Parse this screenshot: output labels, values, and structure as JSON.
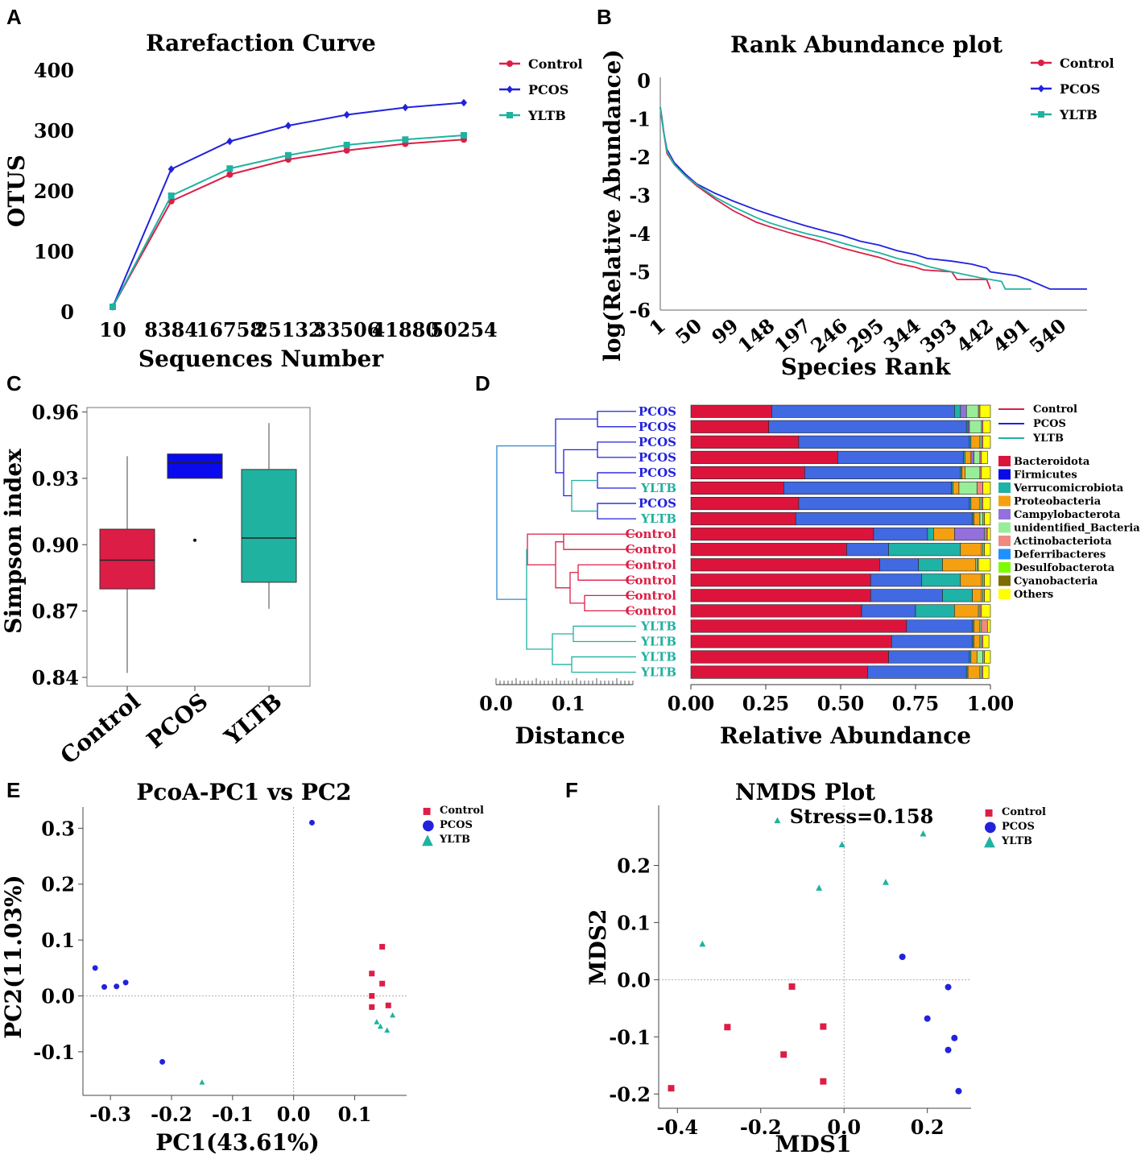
{
  "figure": {
    "panel_labels": [
      "A",
      "B",
      "C",
      "D",
      "E",
      "F"
    ],
    "group_colors": {
      "Control": "#dc1e46",
      "PCOS": "#2222dd",
      "YLTB": "#20b2a0"
    }
  },
  "chart_data": [
    {
      "id": "A",
      "type": "line",
      "title": "Rarefaction Curve",
      "xlabel": "Sequences Number",
      "ylabel": "OTUS",
      "categories": [
        "10",
        "8384",
        "16758",
        "25132",
        "33506",
        "41880",
        "50254"
      ],
      "yticks": [
        "0",
        "100",
        "200",
        "300",
        "400"
      ],
      "ylim": [
        0,
        400
      ],
      "series": [
        {
          "name": "Control",
          "color": "#dc1e46",
          "marker": "circle",
          "values": [
            8,
            183,
            227,
            252,
            267,
            278,
            285
          ]
        },
        {
          "name": "PCOS",
          "color": "#2222dd",
          "marker": "diamond",
          "values": [
            8,
            236,
            282,
            308,
            326,
            338,
            346
          ]
        },
        {
          "name": "YLTB",
          "color": "#20b2a0",
          "marker": "square",
          "values": [
            8,
            192,
            237,
            259,
            276,
            285,
            292
          ]
        }
      ]
    },
    {
      "id": "B",
      "type": "line",
      "title": "Rank Abundance plot",
      "xlabel": "Species Rank",
      "ylabel": "log(Relative Abundance)",
      "xticks": [
        "1",
        "50",
        "99",
        "148",
        "197",
        "246",
        "295",
        "344",
        "393",
        "442",
        "491",
        "540"
      ],
      "yticks": [
        "0",
        "-1",
        "-2",
        "-3",
        "-4",
        "-5",
        "-6"
      ],
      "xlim": [
        1,
        575
      ],
      "ylim": [
        -6,
        0
      ],
      "series": [
        {
          "name": "Control",
          "color": "#dc1e46",
          "x": [
            1,
            3,
            6,
            10,
            20,
            35,
            50,
            75,
            99,
            130,
            148,
            175,
            197,
            220,
            246,
            270,
            295,
            320,
            344,
            355,
            393,
            400,
            440,
            445
          ],
          "y": [
            -0.7,
            -1.0,
            -1.4,
            -1.9,
            -2.2,
            -2.5,
            -2.75,
            -3.1,
            -3.4,
            -3.7,
            -3.82,
            -3.98,
            -4.1,
            -4.22,
            -4.38,
            -4.5,
            -4.62,
            -4.78,
            -4.88,
            -4.95,
            -5.0,
            -5.2,
            -5.2,
            -5.45
          ]
        },
        {
          "name": "PCOS",
          "color": "#2222dd",
          "x": [
            1,
            3,
            6,
            10,
            20,
            35,
            50,
            75,
            99,
            130,
            148,
            175,
            197,
            220,
            246,
            270,
            295,
            320,
            344,
            360,
            393,
            420,
            440,
            445,
            480,
            495,
            525,
            575
          ],
          "y": [
            -0.7,
            -0.95,
            -1.4,
            -1.8,
            -2.15,
            -2.45,
            -2.7,
            -2.95,
            -3.15,
            -3.38,
            -3.5,
            -3.67,
            -3.8,
            -3.92,
            -4.05,
            -4.2,
            -4.3,
            -4.45,
            -4.55,
            -4.65,
            -4.72,
            -4.8,
            -4.9,
            -5.0,
            -5.1,
            -5.2,
            -5.45,
            -5.45
          ]
        },
        {
          "name": "YLTB",
          "color": "#20b2a0",
          "x": [
            1,
            3,
            6,
            10,
            20,
            35,
            50,
            75,
            99,
            130,
            148,
            175,
            197,
            220,
            246,
            270,
            295,
            320,
            344,
            365,
            393,
            430,
            460,
            465,
            500
          ],
          "y": [
            -0.7,
            -1.0,
            -1.4,
            -1.85,
            -2.2,
            -2.5,
            -2.72,
            -3.05,
            -3.3,
            -3.58,
            -3.72,
            -3.88,
            -4.0,
            -4.1,
            -4.25,
            -4.38,
            -4.5,
            -4.65,
            -4.75,
            -4.88,
            -5.0,
            -5.15,
            -5.25,
            -5.45,
            -5.45
          ]
        }
      ]
    },
    {
      "id": "C",
      "type": "box",
      "xlabel": "",
      "ylabel": "Simpson index",
      "categories": [
        "Control",
        "PCOS",
        "YLTB"
      ],
      "yticks": [
        "0.84",
        "0.87",
        "0.90",
        "0.93",
        "0.96"
      ],
      "ylim": [
        0.836,
        0.962
      ],
      "boxes": [
        {
          "name": "Control",
          "color": "#dc1e46",
          "whisker_low": 0.842,
          "q1": 0.88,
          "median": 0.893,
          "q3": 0.907,
          "whisker_high": 0.94,
          "outliers": []
        },
        {
          "name": "PCOS",
          "color": "#0a0aee",
          "whisker_low": 0.93,
          "q1": 0.93,
          "median": 0.937,
          "q3": 0.941,
          "whisker_high": 0.941,
          "outliers": [
            0.902
          ]
        },
        {
          "name": "YLTB",
          "color": "#20b2a0",
          "whisker_low": 0.871,
          "q1": 0.883,
          "median": 0.903,
          "q3": 0.934,
          "whisker_high": 0.955,
          "outliers": []
        }
      ]
    },
    {
      "id": "D",
      "type": "bar",
      "stacked": "horizontal",
      "xlabel": "Relative Abundance",
      "xticks": [
        "0.00",
        "0.25",
        "0.50",
        "0.75",
        "1.00"
      ],
      "xlim": [
        0,
        1
      ],
      "dendrogram_xlabel": "Distance",
      "dendrogram_ticks": [
        "0.0",
        "0.1"
      ],
      "tree_legend": [
        {
          "name": "Control",
          "color": "#dc1e46"
        },
        {
          "name": "PCOS",
          "color": "#2222dd"
        },
        {
          "name": "YLTB",
          "color": "#20b2a0"
        }
      ],
      "phyla": [
        {
          "name": "Bacteroidota",
          "color": "#dc143c"
        },
        {
          "name": "Firmicutes",
          "color": "#0a0ae6"
        },
        {
          "name": "Verrucomicrobiota",
          "color": "#1fb2a6"
        },
        {
          "name": "Proteobacteria",
          "color": "#f5a011"
        },
        {
          "name": "Campylobacterota",
          "color": "#9370db"
        },
        {
          "name": "unidentified_Bacteria",
          "color": "#98ee98"
        },
        {
          "name": "Actinobacteriota",
          "color": "#f08a80"
        },
        {
          "name": "Deferribacteres",
          "color": "#1e90ff"
        },
        {
          "name": "Desulfobacterota",
          "color": "#7cfc00"
        },
        {
          "name": "Cyanobacteria",
          "color": "#7a6c00"
        },
        {
          "name": "Others",
          "color": "#ffff00"
        }
      ],
      "bar_colors_used": [
        "#dc143c",
        "#4169e1",
        "#1fb2a6",
        "#f5a011",
        "#9370db",
        "#98ee98",
        "#f08a80",
        "#1e90ff",
        "#7cfc00",
        "#7a6c00",
        "#ffff00"
      ],
      "samples": [
        {
          "label": "PCOS",
          "group": "PCOS",
          "values": [
            0.27,
            0.61,
            0.02,
            0,
            0.02,
            0.04,
            0.005,
            0,
            0,
            0,
            0.035
          ]
        },
        {
          "label": "PCOS",
          "group": "PCOS",
          "values": [
            0.26,
            0.66,
            0.005,
            0,
            0.005,
            0.04,
            0.005,
            0,
            0,
            0,
            0.025
          ]
        },
        {
          "label": "PCOS",
          "group": "PCOS",
          "values": [
            0.36,
            0.57,
            0.005,
            0.03,
            0,
            0.005,
            0.005,
            0,
            0,
            0,
            0.025
          ]
        },
        {
          "label": "PCOS",
          "group": "PCOS",
          "values": [
            0.49,
            0.42,
            0.005,
            0.02,
            0.01,
            0.02,
            0.005,
            0,
            0,
            0,
            0.02
          ]
        },
        {
          "label": "PCOS",
          "group": "PCOS",
          "values": [
            0.38,
            0.52,
            0.005,
            0.01,
            0,
            0.05,
            0.005,
            0,
            0,
            0,
            0.03
          ]
        },
        {
          "label": "YLTB",
          "group": "YLTB",
          "values": [
            0.31,
            0.56,
            0.005,
            0.02,
            0,
            0.06,
            0.02,
            0,
            0,
            0,
            0.025
          ]
        },
        {
          "label": "PCOS",
          "group": "PCOS",
          "values": [
            0.36,
            0.57,
            0.005,
            0.03,
            0,
            0.005,
            0.005,
            0,
            0,
            0,
            0.025
          ]
        },
        {
          "label": "YLTB",
          "group": "YLTB",
          "values": [
            0.35,
            0.59,
            0.005,
            0.02,
            0,
            0.01,
            0.005,
            0,
            0,
            0,
            0.02
          ]
        },
        {
          "label": "Control",
          "group": "Control",
          "values": [
            0.61,
            0.18,
            0.02,
            0.07,
            0.1,
            0.005,
            0.005,
            0,
            0,
            0,
            0.01
          ]
        },
        {
          "label": "Control",
          "group": "Control",
          "values": [
            0.52,
            0.14,
            0.24,
            0.07,
            0,
            0.005,
            0.005,
            0,
            0,
            0,
            0.02
          ]
        },
        {
          "label": "Control",
          "group": "Control",
          "values": [
            0.63,
            0.13,
            0.08,
            0.11,
            0,
            0.005,
            0.005,
            0,
            0,
            0,
            0.04
          ]
        },
        {
          "label": "Control",
          "group": "Control",
          "values": [
            0.6,
            0.17,
            0.13,
            0.07,
            0,
            0.005,
            0.005,
            0,
            0,
            0,
            0.02
          ]
        },
        {
          "label": "Control",
          "group": "Control",
          "values": [
            0.6,
            0.24,
            0.1,
            0.03,
            0,
            0.005,
            0.005,
            0,
            0,
            0,
            0.02
          ]
        },
        {
          "label": "Control",
          "group": "Control",
          "values": [
            0.57,
            0.18,
            0.13,
            0.08,
            0,
            0.005,
            0.005,
            0,
            0,
            0,
            0.03
          ]
        },
        {
          "label": "YLTB",
          "group": "YLTB",
          "values": [
            0.72,
            0.22,
            0.005,
            0.02,
            0,
            0.005,
            0.02,
            0,
            0,
            0,
            0.01
          ]
        },
        {
          "label": "YLTB",
          "group": "YLTB",
          "values": [
            0.67,
            0.27,
            0.005,
            0.02,
            0,
            0.005,
            0.005,
            0,
            0,
            0,
            0.02
          ]
        },
        {
          "label": "YLTB",
          "group": "YLTB",
          "values": [
            0.66,
            0.27,
            0.005,
            0.02,
            0,
            0.02,
            0.005,
            0,
            0,
            0,
            0.02
          ]
        },
        {
          "label": "YLTB",
          "group": "YLTB",
          "values": [
            0.59,
            0.33,
            0.005,
            0.04,
            0,
            0.005,
            0.005,
            0,
            0,
            0,
            0.02
          ]
        }
      ]
    },
    {
      "id": "E",
      "type": "scatter",
      "title": "PcoA-PC1 vs PC2",
      "xlabel": "PC1(43.61%)",
      "ylabel": "PC2(11.03%)",
      "xlim": [
        -0.345,
        0.185
      ],
      "ylim": [
        -0.178,
        0.338
      ],
      "xticks": [
        "-0.3",
        "-0.2",
        "-0.1",
        "0.0",
        "0.1"
      ],
      "yticks": [
        "-0.1",
        "0.0",
        "0.1",
        "0.2",
        "0.3"
      ],
      "legend_markers": [
        "▪",
        "●",
        "▲"
      ],
      "series": [
        {
          "name": "Control",
          "color": "#dc1e46",
          "marker": "square",
          "x": [
            0.145,
            0.128,
            0.145,
            0.128,
            0.155,
            0.128
          ],
          "y": [
            0.088,
            0.04,
            0.022,
            0.0,
            -0.017,
            -0.02
          ]
        },
        {
          "name": "PCOS",
          "color": "#2222dd",
          "marker": "circle",
          "x": [
            0.03,
            -0.325,
            -0.31,
            -0.29,
            -0.275,
            -0.215
          ],
          "y": [
            0.31,
            0.05,
            0.016,
            0.017,
            0.024,
            -0.118
          ]
        },
        {
          "name": "YLTB",
          "color": "#20b2a0",
          "marker": "triangle",
          "x": [
            0.136,
            0.142,
            0.153,
            0.162,
            -0.15
          ],
          "y": [
            -0.047,
            -0.055,
            -0.062,
            -0.035,
            -0.155
          ]
        }
      ]
    },
    {
      "id": "F",
      "type": "scatter",
      "title": "NMDS Plot",
      "annotation": "Stress=0.158",
      "xlabel": "MDS1",
      "ylabel": "MDS2",
      "xlim": [
        -0.445,
        0.305
      ],
      "ylim": [
        -0.225,
        0.305
      ],
      "xticks": [
        "-0.4",
        "-0.2",
        "0.0",
        "0.2"
      ],
      "yticks": [
        "-0.2",
        "-0.1",
        "0.0",
        "0.1",
        "0.2"
      ],
      "legend_markers": [
        "▪",
        "●",
        "▲"
      ],
      "series": [
        {
          "name": "Control",
          "color": "#dc1e46",
          "marker": "square",
          "x": [
            -0.125,
            -0.28,
            -0.05,
            -0.145,
            -0.05,
            -0.415
          ],
          "y": [
            -0.012,
            -0.083,
            -0.082,
            -0.131,
            -0.178,
            -0.19
          ]
        },
        {
          "name": "PCOS",
          "color": "#2222dd",
          "marker": "circle",
          "x": [
            0.14,
            0.25,
            0.2,
            0.265,
            0.25,
            0.275
          ],
          "y": [
            0.04,
            -0.013,
            -0.068,
            -0.102,
            -0.123,
            -0.195
          ]
        },
        {
          "name": "YLTB",
          "color": "#20b2a0",
          "marker": "triangle",
          "x": [
            -0.16,
            0.19,
            -0.005,
            0.1,
            -0.06,
            -0.34
          ],
          "y": [
            0.278,
            0.255,
            0.236,
            0.17,
            0.16,
            0.062
          ]
        }
      ]
    }
  ]
}
